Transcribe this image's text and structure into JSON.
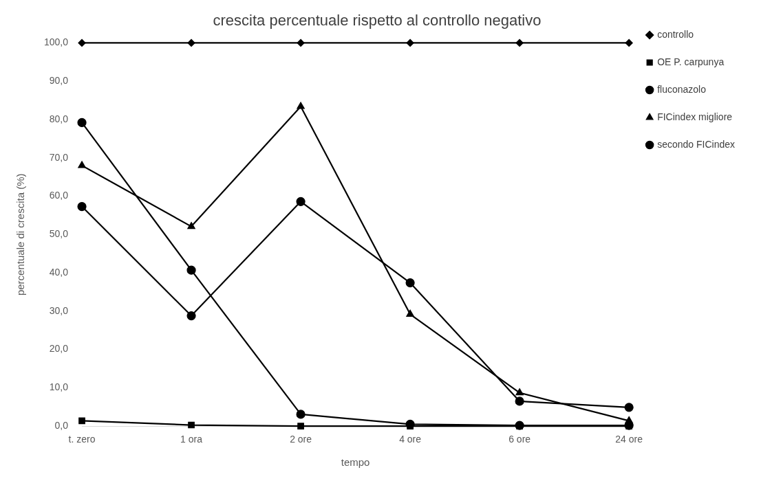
{
  "chart_data": {
    "type": "line",
    "title": "crescita percentuale rispetto al controllo negativo",
    "xlabel": "tempo",
    "ylabel": "percentuale di crescita (%)",
    "categories": [
      "t. zero",
      "1 ora",
      "2 ore",
      "4 ore",
      "6 ore",
      "24 ore"
    ],
    "ylim": [
      0,
      100
    ],
    "yticks": [
      {
        "value": 0,
        "label": "0,0"
      },
      {
        "value": 10,
        "label": "10,0"
      },
      {
        "value": 20,
        "label": "20,0"
      },
      {
        "value": 30,
        "label": "30,0"
      },
      {
        "value": 40,
        "label": "40,0"
      },
      {
        "value": 50,
        "label": "50,0"
      },
      {
        "value": 60,
        "label": "60,0"
      },
      {
        "value": 70,
        "label": "70,0"
      },
      {
        "value": 80,
        "label": "80,0"
      },
      {
        "value": 90,
        "label": "90,0"
      },
      {
        "value": 100,
        "label": "100,0"
      }
    ],
    "grid": false,
    "legend": "right",
    "line_style": "solid",
    "series": [
      {
        "name": "controllo",
        "color": "#000000",
        "marker": "diamond",
        "values": [
          100,
          100,
          100,
          100,
          100,
          100
        ]
      },
      {
        "name": "OE P. carpunya",
        "color": "#000000",
        "marker": "square",
        "values": [
          1.4,
          0.3,
          0,
          0,
          0,
          0
        ]
      },
      {
        "name": "fluconazolo",
        "color": "#000000",
        "marker": "circle",
        "values": [
          57.3,
          28.8,
          58.6,
          37.4,
          6.5,
          4.9
        ]
      },
      {
        "name": "FICindex migliore",
        "color": "#000000",
        "marker": "triangle",
        "values": [
          68.0,
          52.1,
          83.4,
          29.2,
          8.7,
          1.4
        ]
      },
      {
        "name": "secondo FICindex",
        "color": "#000000",
        "marker": "circle",
        "values": [
          79.2,
          40.7,
          3.1,
          0.5,
          0.2,
          0.2
        ]
      }
    ]
  }
}
